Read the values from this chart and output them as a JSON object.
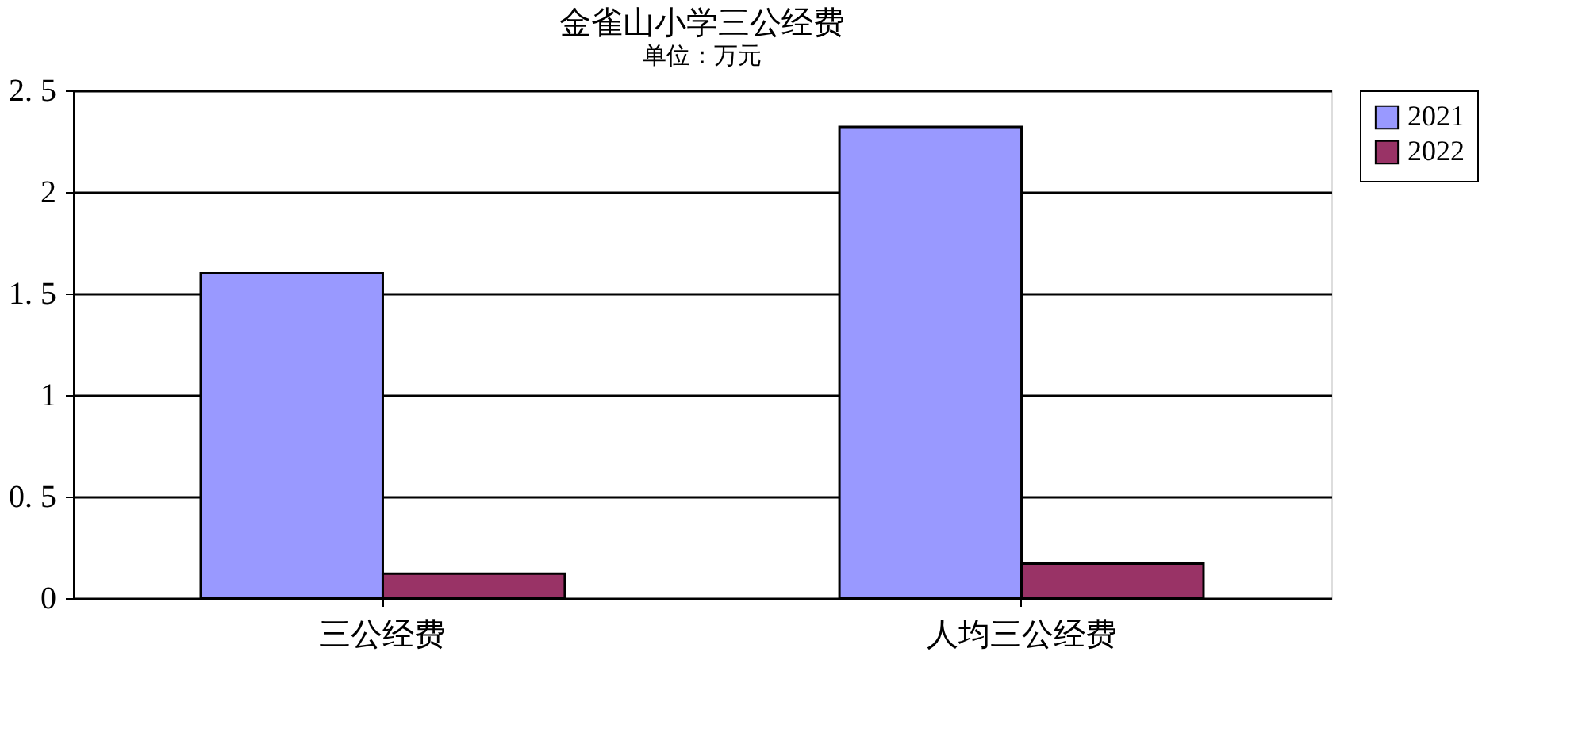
{
  "chart_data": {
    "type": "bar",
    "title": "金雀山小学三公经费",
    "subtitle": "单位：万元",
    "categories": [
      "三公经费",
      "人均三公经费"
    ],
    "series": [
      {
        "name": "2021",
        "color": "#9999ff",
        "values": [
          1.6,
          2.32
        ]
      },
      {
        "name": "2022",
        "color": "#993366",
        "values": [
          0.12,
          0.17
        ]
      }
    ],
    "ylim": [
      0,
      2.5
    ],
    "yticks": [
      0,
      {
        "value": 0.5,
        "label": "0. 5"
      },
      1,
      {
        "value": 1.5,
        "label": "1. 5"
      },
      2,
      {
        "value": 2.5,
        "label": "2. 5"
      }
    ],
    "grid": "y",
    "legend": "right"
  }
}
